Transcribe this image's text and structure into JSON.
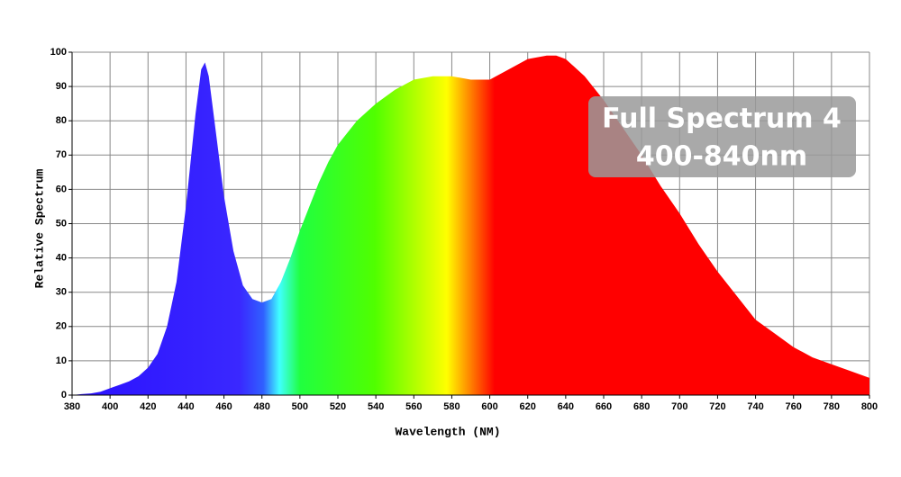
{
  "chart_data": {
    "type": "area",
    "x": [
      380,
      385,
      390,
      395,
      400,
      405,
      410,
      415,
      420,
      425,
      430,
      435,
      440,
      445,
      448,
      450,
      452,
      455,
      460,
      465,
      470,
      475,
      480,
      485,
      490,
      495,
      500,
      505,
      510,
      515,
      520,
      530,
      540,
      550,
      560,
      570,
      580,
      590,
      600,
      610,
      620,
      630,
      635,
      640,
      650,
      660,
      670,
      680,
      690,
      700,
      710,
      720,
      730,
      740,
      750,
      760,
      770,
      780,
      790,
      800
    ],
    "values": [
      0,
      0.3,
      0.5,
      1,
      2,
      3,
      4,
      5.5,
      8,
      12,
      20,
      33,
      55,
      82,
      95,
      97,
      93,
      80,
      58,
      42,
      32,
      28,
      27,
      28,
      33,
      40,
      48,
      55,
      62,
      68,
      73,
      80,
      85,
      89,
      92,
      93,
      93,
      92,
      92,
      95,
      98,
      99,
      99,
      98,
      93,
      86,
      78,
      70,
      61,
      53,
      44,
      36,
      29,
      22,
      18,
      14,
      11,
      9,
      7,
      5
    ],
    "xlim": [
      380,
      800
    ],
    "ylim": [
      0,
      100
    ],
    "xticks": [
      380,
      400,
      420,
      440,
      460,
      480,
      500,
      520,
      540,
      560,
      580,
      600,
      620,
      640,
      660,
      680,
      700,
      720,
      740,
      760,
      780,
      800
    ],
    "yticks": [
      0,
      10,
      20,
      30,
      40,
      50,
      60,
      70,
      80,
      90,
      100
    ],
    "grid": true,
    "x_label": "Wavelength (NM)",
    "y_label": "Relative Spectrum",
    "annotations": [
      "Full Spectrum 4",
      "400-840nm"
    ]
  }
}
